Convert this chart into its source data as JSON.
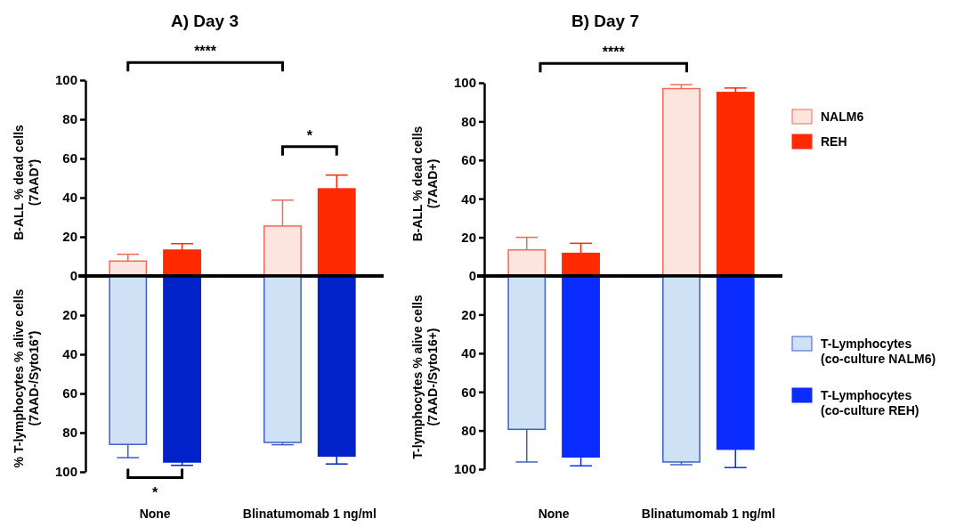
{
  "chart_data": [
    {
      "type": "bar",
      "title": "A) Day 3",
      "ylabel": "B-ALL % dead cells (7AAD⁺)",
      "categories": [
        null,
        null
      ],
      "tick_labels": "y",
      "series": [
        {
          "color": "#fde4df",
          "values": [
            7.6,
            25.5
          ],
          "errors": [
            3.5,
            13.2
          ]
        },
        {
          "color": "#ff2a00",
          "values": [
            13.2,
            44.5
          ],
          "errors": [
            3.3,
            7
          ]
        }
      ],
      "ylim": [
        0,
        100
      ],
      "yticks": [
        0,
        20,
        40,
        60,
        80,
        100
      ],
      "annotations": [
        "****",
        "*"
      ],
      "legend": false
    },
    {
      "type": "bar",
      "ylabel": "% T-lymphocytes % alive cells (7AAD-/Syto16⁺)",
      "categories": [
        "None",
        "Blinatumomab 1 ng/ml"
      ],
      "series": [
        {
          "color": "#cfe2f5",
          "values": [
            86,
            85
          ],
          "errors": [
            6.8,
            1.2
          ]
        },
        {
          "color": "#0022c8",
          "values": [
            95,
            92
          ],
          "errors": [
            1.7,
            4
          ]
        }
      ],
      "ylim": [
        100,
        0
      ],
      "yticks": [
        20,
        40,
        60,
        80,
        100
      ],
      "annotations": [
        "*"
      ],
      "legend": false
    },
    {
      "type": "bar",
      "title": "B) Day 7",
      "ylabel": "B-ALL % dead cells (7AAD+)",
      "categories": [
        null,
        null
      ],
      "tick_labels": "y",
      "series": [
        {
          "name": "NALM6",
          "color": "#fde4df",
          "values": [
            13.5,
            97
          ],
          "errors": [
            6.5,
            2
          ]
        },
        {
          "name": "REH",
          "color": "#ff2a00",
          "values": [
            11.7,
            95
          ],
          "errors": [
            5.2,
            2.3
          ]
        }
      ],
      "ylim": [
        0,
        100
      ],
      "yticks": [
        0,
        20,
        40,
        60,
        80,
        100
      ],
      "annotations": [
        "****"
      ],
      "legend": "right"
    },
    {
      "type": "bar",
      "ylabel": "T-lymphocytes % alive cells (7AAD-/Syto16+)",
      "categories": [
        "None",
        "Blinatumomab 1 ng/ml"
      ],
      "series": [
        {
          "name": "T-Lymphocytes (co-culture NALM6)",
          "color": "#cfe2f5",
          "values": [
            79.4,
            96.3
          ],
          "errors": [
            16.9,
            1.4
          ]
        },
        {
          "name": "T-Lymphocytes (co-culture REH)",
          "color": "#0a2cff",
          "values": [
            93.7,
            89.7
          ],
          "errors": [
            4.6,
            9.5
          ]
        }
      ],
      "ylim": [
        100,
        0
      ],
      "yticks": [
        20,
        40,
        60,
        80,
        100
      ],
      "legend": "right"
    }
  ]
}
